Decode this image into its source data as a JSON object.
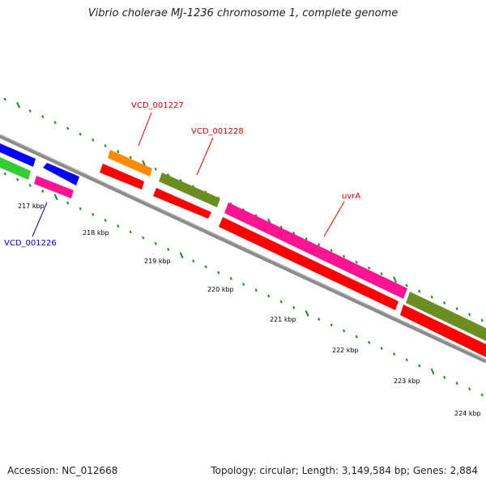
{
  "title": "Vibrio cholerae MJ-1236 chromosome 1, complete genome",
  "footer": {
    "accession": "Accession: NC_012668",
    "summary": "Topology: circular; Length: 3,149,584 bp; Genes: 2,884"
  },
  "colors": {
    "backbone": "#8c8c8c",
    "tick": "#1a8a1a",
    "label_red": "#e60000",
    "label_blue": "#0000cc",
    "orange": "#ff8c00",
    "red": "#ff0000",
    "olive": "#6b8e23",
    "magenta": "#ff1493",
    "blue": "#0000ff",
    "green": "#33cc33"
  },
  "ticks": [
    {
      "label": "217 kbp"
    },
    {
      "label": "218 kbp"
    },
    {
      "label": "219 kbp"
    },
    {
      "label": "220 kbp"
    },
    {
      "label": "221 kbp"
    },
    {
      "label": "222 kbp"
    },
    {
      "label": "223 kbp"
    },
    {
      "label": "224 kbp"
    }
  ],
  "gene_labels": [
    {
      "text": "VCD_001227",
      "color": "red"
    },
    {
      "text": "VCD_001228",
      "color": "red"
    },
    {
      "text": "uvrA",
      "color": "red"
    },
    {
      "text": "VCD_001226",
      "color": "blue"
    }
  ]
}
